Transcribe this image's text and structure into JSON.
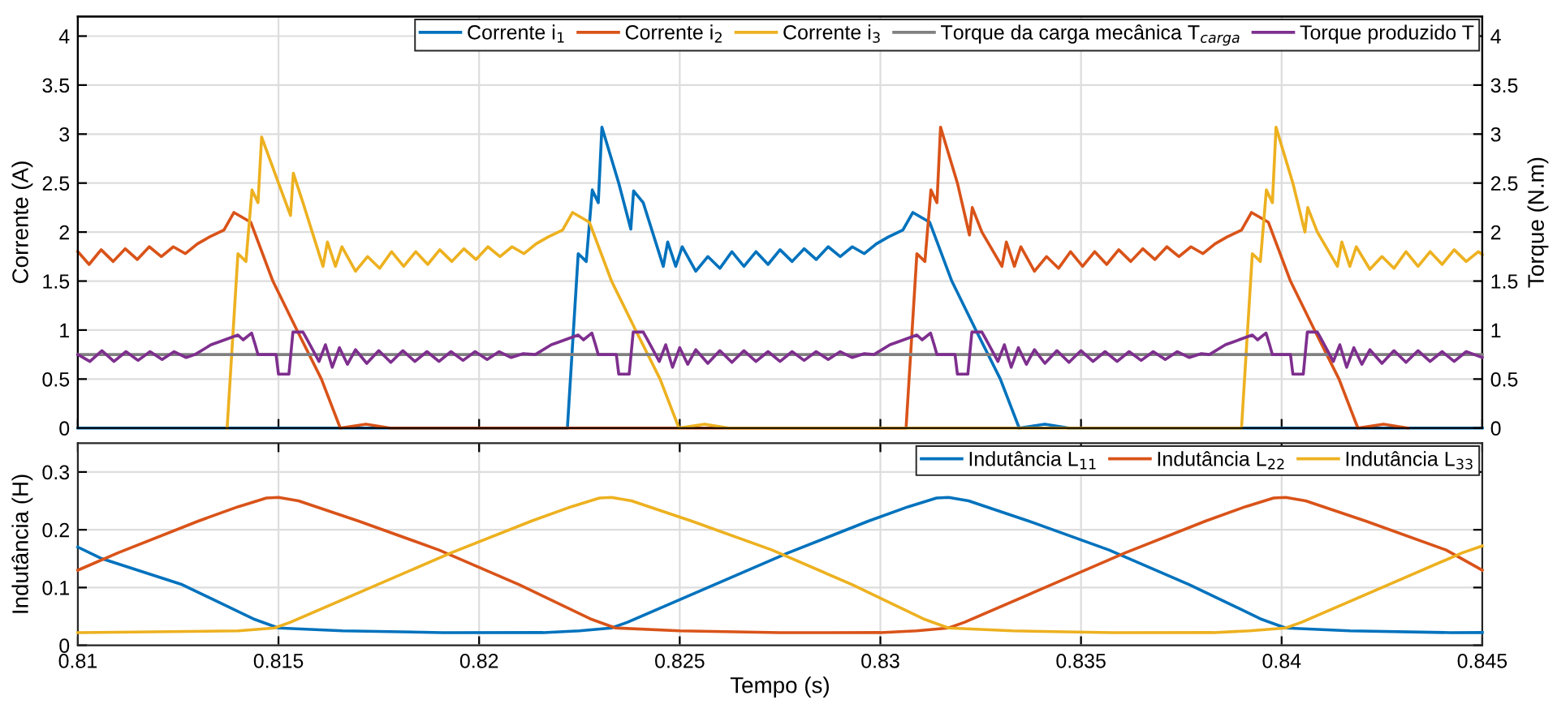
{
  "chart_data": [
    {
      "type": "line",
      "ylabel": "Corrente (A)",
      "y2label": "Torque (N.m)",
      "xlim": [
        0.81,
        0.845
      ],
      "xticks": [
        0.81,
        0.815,
        0.82,
        0.825,
        0.83,
        0.835,
        0.84,
        0.845
      ],
      "ylim": [
        0,
        4.2
      ],
      "yticks": [
        0,
        0.5,
        1,
        1.5,
        2,
        2.5,
        3,
        3.5,
        4
      ],
      "y2lim": [
        0,
        4.2
      ],
      "y2ticks": [
        0,
        0.5,
        1,
        1.5,
        2,
        2.5,
        3,
        3.5,
        4
      ],
      "grid": true,
      "legend": "top right",
      "tick_labels": "y",
      "line_style": "solid",
      "marker": "none",
      "series": [
        {
          "name": "Corrente i$_{1}$",
          "color": "#0072bd",
          "x": [
            0.81,
            0.8222,
            0.82247,
            0.82267,
            0.82282,
            0.82297,
            0.82306,
            0.82348,
            0.82378,
            0.82385,
            0.82409,
            0.82459,
            0.8247,
            0.8249,
            0.82506,
            0.8254,
            0.8257,
            0.826,
            0.8263,
            0.8266,
            0.8269,
            0.8272,
            0.8275,
            0.8278,
            0.8281,
            0.8284,
            0.8287,
            0.829,
            0.8293,
            0.8296,
            0.8299,
            0.8302,
            0.83056,
            0.83081,
            0.83123,
            0.83178,
            0.83238,
            0.83299,
            0.83346,
            0.8341,
            0.8347,
            0.845
          ],
          "values": [
            0,
            0,
            1.78,
            1.7,
            2.43,
            2.3,
            3.07,
            2.5,
            2.03,
            2.42,
            2.3,
            1.65,
            1.9,
            1.65,
            1.85,
            1.6,
            1.75,
            1.63,
            1.8,
            1.65,
            1.8,
            1.67,
            1.82,
            1.7,
            1.83,
            1.72,
            1.85,
            1.75,
            1.85,
            1.78,
            1.88,
            1.95,
            2.02,
            2.2,
            2.1,
            1.5,
            1.0,
            0.5,
            0,
            0.04,
            0,
            0
          ]
        },
        {
          "name": "Corrente i$_{2}$",
          "color": "#d95319",
          "x": [
            0.81,
            0.81028,
            0.81058,
            0.81088,
            0.81118,
            0.81148,
            0.81178,
            0.81208,
            0.81238,
            0.81268,
            0.81298,
            0.81328,
            0.81364,
            0.81389,
            0.81431,
            0.81486,
            0.81546,
            0.81607,
            0.81654,
            0.81718,
            0.81778,
            0.83064,
            0.83091,
            0.83111,
            0.83126,
            0.83141,
            0.8315,
            0.83192,
            0.83222,
            0.83229,
            0.83253,
            0.83303,
            0.83314,
            0.83334,
            0.8335,
            0.83384,
            0.83414,
            0.83444,
            0.83474,
            0.83504,
            0.83534,
            0.83564,
            0.83594,
            0.83624,
            0.83654,
            0.83684,
            0.83714,
            0.83744,
            0.83774,
            0.83804,
            0.83834,
            0.83864,
            0.839,
            0.83925,
            0.83967,
            0.84022,
            0.84082,
            0.84143,
            0.8419,
            0.84254,
            0.84314
          ],
          "values": [
            1.8,
            1.67,
            1.82,
            1.7,
            1.83,
            1.72,
            1.85,
            1.75,
            1.85,
            1.78,
            1.88,
            1.95,
            2.02,
            2.2,
            2.1,
            1.5,
            1.0,
            0.5,
            0,
            0.04,
            0,
            0,
            1.78,
            1.7,
            2.43,
            2.3,
            3.07,
            2.5,
            1.97,
            2.25,
            2.0,
            1.65,
            1.9,
            1.65,
            1.85,
            1.6,
            1.75,
            1.63,
            1.8,
            1.65,
            1.8,
            1.67,
            1.82,
            1.7,
            1.83,
            1.72,
            1.85,
            1.75,
            1.85,
            1.78,
            1.88,
            1.95,
            2.02,
            2.2,
            2.1,
            1.5,
            1.0,
            0.5,
            0,
            0.04,
            0
          ]
        },
        {
          "name": "Corrente i$_{3}$",
          "color": "#edb120",
          "x": [
            0.81372,
            0.81399,
            0.81419,
            0.81434,
            0.81449,
            0.81458,
            0.815,
            0.8153,
            0.81537,
            0.81561,
            0.81611,
            0.81622,
            0.81642,
            0.81658,
            0.81692,
            0.81722,
            0.81752,
            0.81782,
            0.81812,
            0.81842,
            0.81872,
            0.81902,
            0.81932,
            0.81962,
            0.81992,
            0.82022,
            0.82052,
            0.82082,
            0.82112,
            0.82142,
            0.82172,
            0.82208,
            0.82233,
            0.82275,
            0.8233,
            0.8239,
            0.82451,
            0.82498,
            0.82562,
            0.82622,
            0.839,
            0.83927,
            0.83947,
            0.83962,
            0.83977,
            0.83986,
            0.84028,
            0.84058,
            0.84065,
            0.84089,
            0.84139,
            0.8415,
            0.8417,
            0.84186,
            0.8422,
            0.8425,
            0.8428,
            0.8431,
            0.8434,
            0.8437,
            0.844,
            0.8443,
            0.8446,
            0.8449,
            0.845
          ],
          "values": [
            0,
            1.78,
            1.7,
            2.43,
            2.3,
            2.97,
            2.5,
            2.17,
            2.6,
            2.3,
            1.65,
            1.9,
            1.65,
            1.85,
            1.6,
            1.75,
            1.63,
            1.8,
            1.65,
            1.8,
            1.67,
            1.82,
            1.7,
            1.83,
            1.72,
            1.85,
            1.75,
            1.85,
            1.78,
            1.88,
            1.95,
            2.02,
            2.2,
            2.1,
            1.5,
            1.0,
            0.5,
            0,
            0.04,
            0,
            0,
            1.78,
            1.7,
            2.43,
            2.3,
            3.07,
            2.5,
            2.0,
            2.25,
            2.0,
            1.65,
            1.9,
            1.65,
            1.85,
            1.62,
            1.75,
            1.63,
            1.8,
            1.65,
            1.8,
            1.67,
            1.82,
            1.7,
            1.8,
            1.77
          ]
        },
        {
          "name": "Torque da carga mecânica T$_{carga}$",
          "color": "#808080",
          "axis": "y2",
          "x": [
            0.81,
            0.845
          ],
          "values": [
            0.75,
            0.75
          ]
        },
        {
          "name": "Torque produzido T",
          "color": "#7e2f8e",
          "axis": "y2",
          "x": [
            0.81,
            0.8103,
            0.8106,
            0.8109,
            0.8112,
            0.8115,
            0.8118,
            0.8121,
            0.8124,
            0.8127,
            0.81292,
            0.81332,
            0.81352,
            0.81399,
            0.81412,
            0.81433,
            0.81442,
            0.81449,
            0.81494,
            0.815,
            0.81526,
            0.81536,
            0.81561,
            0.81572,
            0.81601,
            0.81617,
            0.81634,
            0.81652,
            0.81672,
            0.81692,
            0.8172,
            0.8175,
            0.8178,
            0.8181,
            0.8184,
            0.8187,
            0.819,
            0.8193,
            0.8196,
            0.8199,
            0.8202,
            0.8205,
            0.8208,
            0.8211,
            0.8214,
            0.8218,
            0.822,
            0.82247,
            0.8226,
            0.82281,
            0.8229,
            0.82297,
            0.82342,
            0.82348,
            0.82374,
            0.82384,
            0.82409,
            0.8242,
            0.82449,
            0.82465,
            0.82482,
            0.825,
            0.8252,
            0.8254,
            0.8257,
            0.826,
            0.8263,
            0.8266,
            0.8269,
            0.8272,
            0.8275,
            0.8278,
            0.8281,
            0.8284,
            0.8287,
            0.829,
            0.8293,
            0.8296,
            0.82984,
            0.83024,
            0.83044,
            0.83091,
            0.83104,
            0.83125,
            0.83134,
            0.83141,
            0.83186,
            0.83192,
            0.83218,
            0.83228,
            0.83253,
            0.83264,
            0.83293,
            0.83309,
            0.83326,
            0.83344,
            0.83364,
            0.83384,
            0.8341,
            0.8344,
            0.8347,
            0.835,
            0.8353,
            0.8356,
            0.8359,
            0.8362,
            0.8365,
            0.8368,
            0.8371,
            0.8374,
            0.8377,
            0.838,
            0.8382,
            0.8386,
            0.8388,
            0.83927,
            0.8394,
            0.83961,
            0.8397,
            0.83977,
            0.84022,
            0.84028,
            0.84054,
            0.84064,
            0.84089,
            0.841,
            0.84129,
            0.84145,
            0.84162,
            0.8418,
            0.842,
            0.8422,
            0.8425,
            0.8428,
            0.8431,
            0.8434,
            0.8437,
            0.844,
            0.8443,
            0.8446,
            0.845
          ],
          "values": [
            0.75,
            0.68,
            0.79,
            0.68,
            0.78,
            0.69,
            0.78,
            0.7,
            0.78,
            0.72,
            0.75,
            0.85,
            0.88,
            0.95,
            0.9,
            0.97,
            0.85,
            0.75,
            0.75,
            0.55,
            0.55,
            0.98,
            0.98,
            0.9,
            0.68,
            0.85,
            0.62,
            0.82,
            0.65,
            0.8,
            0.66,
            0.79,
            0.67,
            0.79,
            0.68,
            0.78,
            0.68,
            0.78,
            0.69,
            0.78,
            0.7,
            0.78,
            0.72,
            0.76,
            0.75,
            0.85,
            0.88,
            0.95,
            0.9,
            0.97,
            0.85,
            0.75,
            0.75,
            0.55,
            0.55,
            0.98,
            0.98,
            0.9,
            0.68,
            0.85,
            0.62,
            0.82,
            0.65,
            0.8,
            0.66,
            0.79,
            0.67,
            0.79,
            0.68,
            0.78,
            0.68,
            0.78,
            0.69,
            0.78,
            0.7,
            0.78,
            0.72,
            0.76,
            0.75,
            0.85,
            0.88,
            0.95,
            0.9,
            0.97,
            0.85,
            0.75,
            0.75,
            0.55,
            0.55,
            0.98,
            0.98,
            0.9,
            0.68,
            0.85,
            0.62,
            0.82,
            0.65,
            0.8,
            0.66,
            0.79,
            0.67,
            0.79,
            0.68,
            0.78,
            0.68,
            0.78,
            0.69,
            0.78,
            0.7,
            0.78,
            0.72,
            0.76,
            0.75,
            0.85,
            0.88,
            0.95,
            0.9,
            0.97,
            0.85,
            0.75,
            0.75,
            0.55,
            0.55,
            0.98,
            0.98,
            0.9,
            0.68,
            0.85,
            0.62,
            0.82,
            0.65,
            0.8,
            0.66,
            0.79,
            0.67,
            0.79,
            0.68,
            0.78,
            0.68,
            0.78,
            0.72
          ]
        }
      ]
    },
    {
      "type": "line",
      "xlabel": "Tempo (s)",
      "ylabel": "Indutância (H)",
      "xlim": [
        0.81,
        0.845
      ],
      "xticks": [
        0.81,
        0.815,
        0.82,
        0.825,
        0.83,
        0.835,
        0.84,
        0.845
      ],
      "ylim": [
        0,
        0.35
      ],
      "yticks": [
        0,
        0.1,
        0.2,
        0.3
      ],
      "grid": true,
      "legend": "top right",
      "line_style": "solid",
      "marker": "none",
      "series": [
        {
          "name": "Indutância L$_{11}$",
          "color": "#0072bd",
          "x": [
            0.81,
            0.8106,
            0.8126,
            0.8144,
            0.815,
            0.8166,
            0.8191,
            0.8216,
            0.8225,
            0.8233,
            0.8237,
            0.8257,
            0.8277,
            0.8297,
            0.8307,
            0.8314,
            0.8317,
            0.8322,
            0.8337,
            0.8357,
            0.8377,
            0.8395,
            0.8401,
            0.8417,
            0.8442,
            0.845
          ],
          "values": [
            0.17,
            0.15,
            0.105,
            0.045,
            0.03,
            0.025,
            0.022,
            0.022,
            0.025,
            0.03,
            0.04,
            0.1,
            0.16,
            0.215,
            0.24,
            0.255,
            0.256,
            0.25,
            0.215,
            0.165,
            0.105,
            0.045,
            0.03,
            0.025,
            0.022,
            0.022
          ]
        },
        {
          "name": "Indutância L$_{22}$",
          "color": "#d95319",
          "x": [
            0.81,
            0.811,
            0.813,
            0.814,
            0.8147,
            0.815,
            0.8155,
            0.817,
            0.819,
            0.821,
            0.8228,
            0.8234,
            0.825,
            0.8275,
            0.83,
            0.8309,
            0.8317,
            0.8321,
            0.8341,
            0.8361,
            0.8381,
            0.8391,
            0.8398,
            0.8401,
            0.8406,
            0.8421,
            0.8441,
            0.845
          ],
          "values": [
            0.13,
            0.16,
            0.215,
            0.24,
            0.255,
            0.256,
            0.25,
            0.215,
            0.165,
            0.105,
            0.045,
            0.03,
            0.025,
            0.022,
            0.022,
            0.025,
            0.03,
            0.04,
            0.1,
            0.16,
            0.215,
            0.24,
            0.255,
            0.256,
            0.25,
            0.215,
            0.165,
            0.13
          ]
        },
        {
          "name": "Indutância L$_{33}$",
          "color": "#edb120",
          "x": [
            0.81,
            0.814,
            0.8149,
            0.8153,
            0.8173,
            0.8193,
            0.8213,
            0.8223,
            0.823,
            0.8233,
            0.8238,
            0.8253,
            0.8273,
            0.8293,
            0.8311,
            0.8317,
            0.8333,
            0.8358,
            0.8383,
            0.8392,
            0.8401,
            0.8405,
            0.8425,
            0.8445,
            0.845
          ],
          "values": [
            0.022,
            0.025,
            0.03,
            0.04,
            0.1,
            0.16,
            0.215,
            0.24,
            0.255,
            0.256,
            0.25,
            0.215,
            0.165,
            0.105,
            0.045,
            0.03,
            0.025,
            0.022,
            0.022,
            0.025,
            0.03,
            0.04,
            0.1,
            0.16,
            0.172
          ]
        }
      ]
    }
  ]
}
